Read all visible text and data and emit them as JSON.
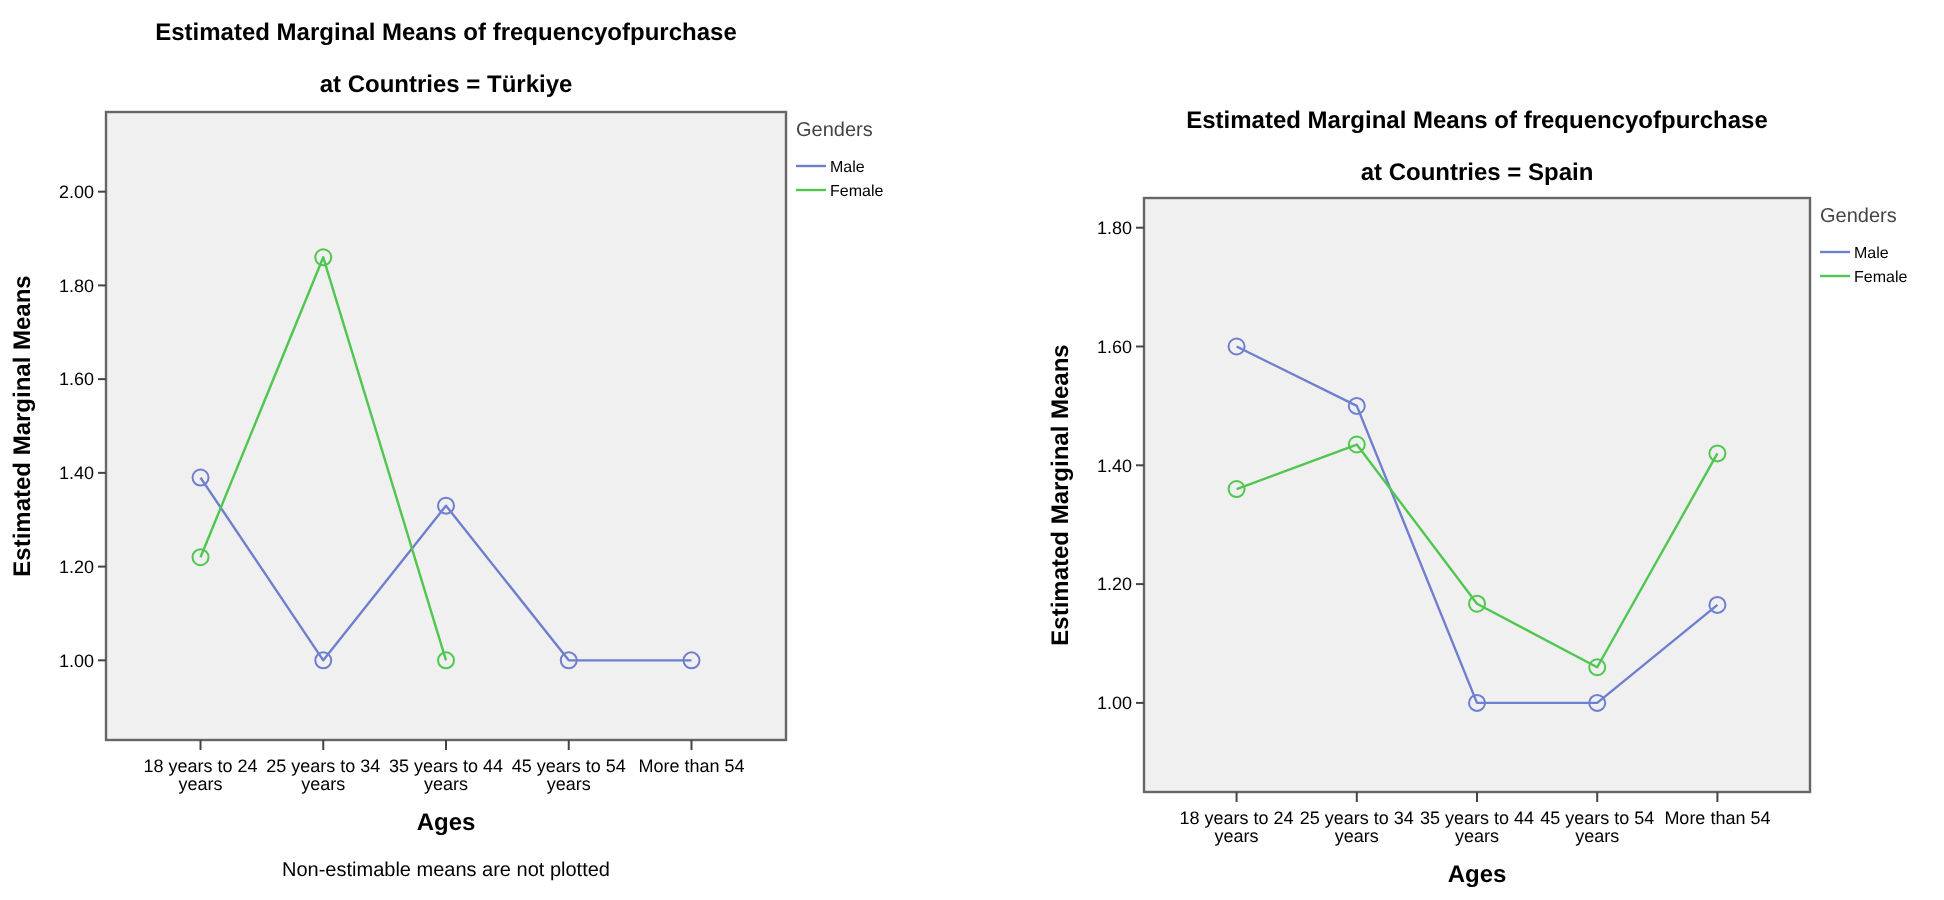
{
  "chart_data": [
    {
      "type": "line",
      "title": "Estimated Marginal Means of frequencyofpurchase",
      "subtitle": "at Countries = Türkiye",
      "xlabel": "Ages",
      "ylabel": "Estimated Marginal Means",
      "legend_title": "Genders",
      "legend": "right",
      "marker": "circle",
      "grid": false,
      "categories": [
        "18 years to 24 years",
        "25 years to 34 years",
        "35 years to 44 years",
        "45 years to 54 years",
        "More than 54"
      ],
      "series": [
        {
          "name": "Male",
          "color": "#6f7fcf",
          "values": [
            1.39,
            1.0,
            1.33,
            1.0,
            1.0
          ]
        },
        {
          "name": "Female",
          "color": "#4fc74f",
          "values": [
            1.22,
            1.86,
            1.0,
            null,
            null
          ]
        }
      ],
      "ylim": [
        0.83,
        2.17
      ],
      "yticks": [
        {
          "value": 1,
          "label": "1.00"
        },
        {
          "value": 1.2,
          "label": "1.20"
        },
        {
          "value": 1.4,
          "label": "1.40"
        },
        {
          "value": 1.6,
          "label": "1.60"
        },
        {
          "value": 1.8,
          "label": "1.80"
        },
        {
          "value": 2,
          "label": "2.00"
        }
      ],
      "annotations": [
        "Non-estimable means are not plotted"
      ]
    },
    {
      "type": "line",
      "title": "Estimated Marginal Means of frequencyofpurchase",
      "subtitle": "at Countries = Spain",
      "xlabel": "Ages",
      "ylabel": "Estimated Marginal Means",
      "legend_title": "Genders",
      "legend": "right",
      "marker": "circle",
      "grid": false,
      "categories": [
        "18 years to 24 years",
        "25 years to 34 years",
        "35 years to 44 years",
        "45 years to 54 years",
        "More than 54"
      ],
      "series": [
        {
          "name": "Male",
          "color": "#6f7fcf",
          "values": [
            1.6,
            1.5,
            1.0,
            1.0,
            1.165
          ]
        },
        {
          "name": "Female",
          "color": "#4fc74f",
          "values": [
            1.36,
            1.435,
            1.167,
            1.06,
            1.42
          ]
        }
      ],
      "ylim": [
        0.85,
        1.85
      ],
      "yticks": [
        {
          "value": 1,
          "label": "1.00"
        },
        {
          "value": 1.2,
          "label": "1.20"
        },
        {
          "value": 1.4,
          "label": "1.40"
        },
        {
          "value": 1.6,
          "label": "1.60"
        },
        {
          "value": 1.8,
          "label": "1.80"
        }
      ]
    }
  ]
}
